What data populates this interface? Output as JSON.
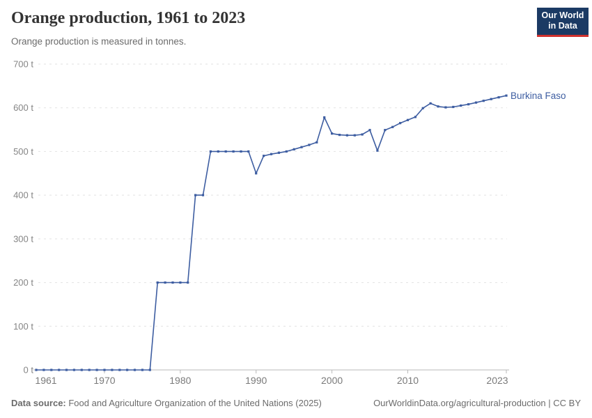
{
  "header": {
    "title": "Orange production, 1961 to 2023",
    "subtitle": "Orange production is measured in tonnes.",
    "logo": {
      "line1": "Our World",
      "line2": "in Data",
      "bg_color": "#1b3a64",
      "accent_color": "#d0312d"
    }
  },
  "chart_data": {
    "type": "line",
    "title": "Orange production, 1961 to 2023",
    "xlabel": "",
    "ylabel": "",
    "unit": "tonnes",
    "x_start": 1961,
    "x_end": 2023,
    "xlim": [
      1961,
      2023
    ],
    "ylim": [
      0,
      700
    ],
    "y_ticks": [
      0,
      100,
      200,
      300,
      400,
      500,
      600,
      700
    ],
    "y_tick_suffix": " t",
    "x_ticks": [
      1961,
      1970,
      1980,
      1990,
      2000,
      2010,
      2023
    ],
    "grid": "horizontal-dashed",
    "legend_position": "end-of-line-label",
    "series": [
      {
        "name": "Burkina Faso",
        "color": "#3d5da1",
        "values": [
          0,
          0,
          0,
          0,
          0,
          0,
          0,
          0,
          0,
          0,
          0,
          0,
          0,
          0,
          0,
          0,
          200,
          200,
          200,
          200,
          200,
          400,
          400,
          500,
          500,
          500,
          500,
          500,
          500,
          450,
          490,
          494,
          497,
          500,
          505,
          510,
          515,
          521,
          578,
          541,
          538,
          537,
          537,
          539,
          549,
          502,
          549,
          556,
          565,
          572,
          579,
          599,
          610,
          603,
          601,
          602,
          605,
          608,
          612,
          616,
          620,
          624,
          628
        ]
      }
    ]
  },
  "footer": {
    "source_label": "Data source:",
    "source_text": " Food and Agriculture Organization of the United Nations (2025)",
    "credit": "OurWorldinData.org/agricultural-production | CC BY"
  }
}
